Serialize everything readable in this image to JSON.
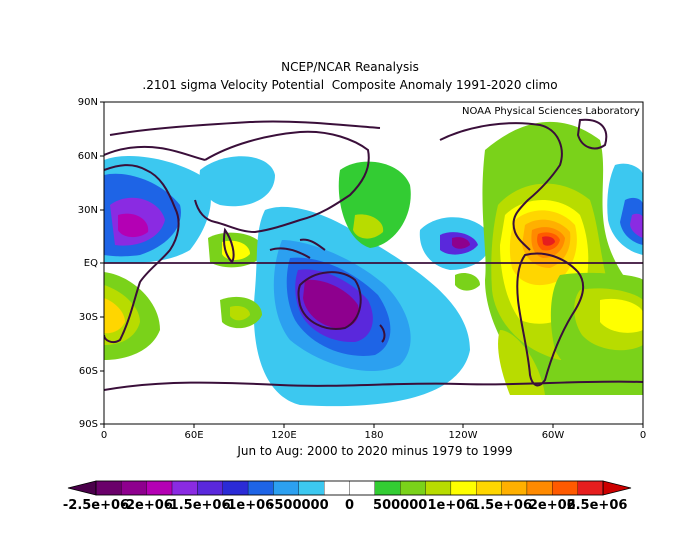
{
  "title": {
    "line1": "NCEP/NCAR Reanalysis",
    "line2": ".2101 sigma Velocity Potential  Composite Anomaly 1991-2020 climo"
  },
  "credit": "NOAA Physical Sciences Laboratory",
  "subtitle": "Jun to Aug: 2000 to 2020 minus 1979 to 1999",
  "map": {
    "lon_ticks": [
      "0",
      "60E",
      "120E",
      "180",
      "120W",
      "60W",
      "0"
    ],
    "lat_ticks": [
      "90N",
      "60N",
      "30N",
      "EQ",
      "30S",
      "60S",
      "90S"
    ]
  },
  "colorbar": {
    "labels": [
      "-2.5e+06",
      "-2e+06",
      "-1.5e+06",
      "-1e+06",
      "-500000",
      "0",
      "500000",
      "1e+06",
      "1.5e+06",
      "2e+06",
      "2.5e+06"
    ],
    "colors": [
      "#6a006a",
      "#8e008e",
      "#b400b4",
      "#8a2be2",
      "#5a28dc",
      "#2b2bd6",
      "#1e64e6",
      "#2ca0f0",
      "#3cc8f0",
      "#ffffff",
      "#ffffff",
      "#33cc33",
      "#7ad21a",
      "#b8dc00",
      "#ffff00",
      "#ffd600",
      "#ffb000",
      "#ff8a00",
      "#ff5a00",
      "#e61e1e"
    ]
  }
}
